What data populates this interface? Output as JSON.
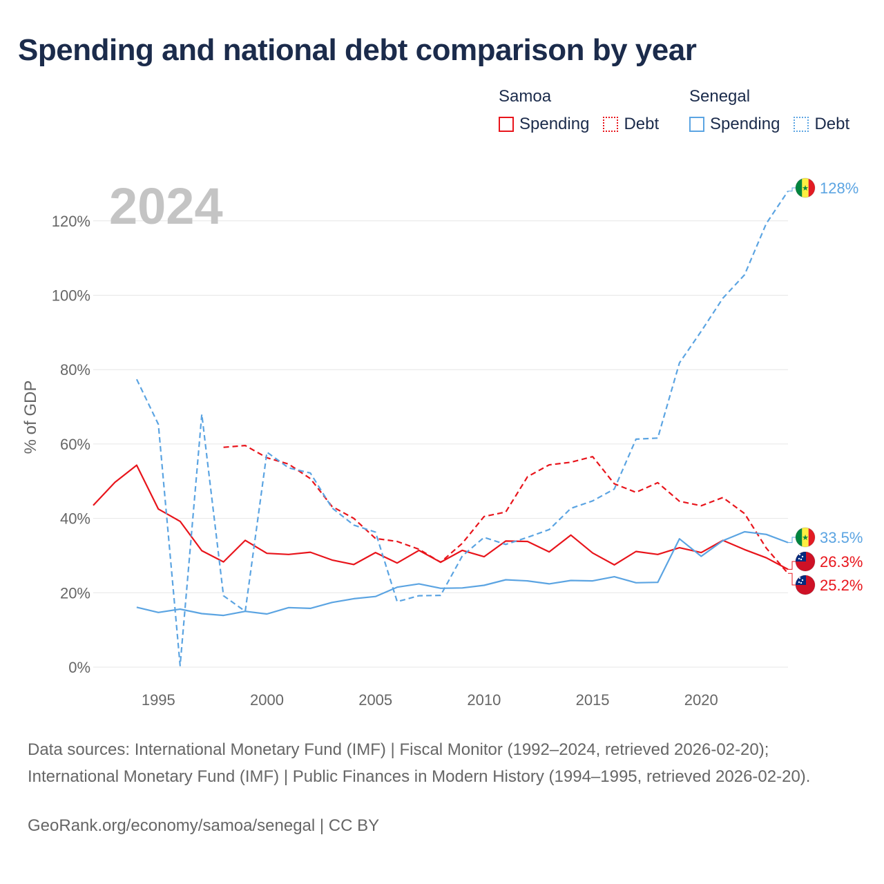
{
  "title": "Spending and national debt comparison by year",
  "colors": {
    "samoa": "#e8141b",
    "senegal": "#5ba4e2",
    "title": "#1b2b4b",
    "muted": "#666666",
    "watermark": "#c4c4c4"
  },
  "legend": {
    "samoa": {
      "label": "Samoa",
      "spending": "Spending",
      "debt": "Debt"
    },
    "senegal": {
      "label": "Senegal",
      "spending": "Spending",
      "debt": "Debt"
    }
  },
  "footer": {
    "sources": "Data sources: International Monetary Fund (IMF) | Fiscal Monitor (1992–2024, retrieved 2026-02-20); International Monetary Fund (IMF) | Public Finances in Modern History (1994–1995, retrieved 2026-02-20).",
    "credit": "GeoRank.org/economy/samoa/senegal | CC BY"
  },
  "chart_data": {
    "type": "line",
    "title": "Spending and national debt comparison by year",
    "year_label": "2024",
    "ylabel": "% of GDP",
    "xlim": [
      1992,
      2024
    ],
    "ylim": [
      0,
      128
    ],
    "x_ticks": [
      1995,
      2000,
      2005,
      2010,
      2015,
      2020
    ],
    "y_ticks": [
      0,
      20,
      40,
      60,
      80,
      100,
      120
    ],
    "y_tick_labels": [
      "0%",
      "20%",
      "40%",
      "60%",
      "80%",
      "100%",
      "120%"
    ],
    "series": [
      {
        "name": "Samoa Spending",
        "country": "samoa",
        "dashed": false,
        "x": [
          1992,
          1993,
          1994,
          1995,
          1996,
          1997,
          1998,
          1999,
          2000,
          2001,
          2002,
          2003,
          2004,
          2005,
          2006,
          2007,
          2008,
          2009,
          2010,
          2011,
          2012,
          2013,
          2014,
          2015,
          2016,
          2017,
          2018,
          2019,
          2020,
          2021,
          2022,
          2023,
          2024
        ],
        "y": [
          43.5,
          49.7,
          54.3,
          42.5,
          39.2,
          31.3,
          28.3,
          34.1,
          30.6,
          30.3,
          30.9,
          28.8,
          27.6,
          30.8,
          28,
          31.4,
          28.2,
          31.4,
          29.7,
          33.9,
          33.8,
          31,
          35.5,
          30.7,
          27.5,
          31.1,
          30.3,
          32.1,
          30.8,
          34.1,
          31.6,
          29.4,
          26.3
        ]
      },
      {
        "name": "Samoa Debt",
        "country": "samoa",
        "dashed": true,
        "x": [
          1998,
          1999,
          2000,
          2001,
          2002,
          2003,
          2004,
          2005,
          2006,
          2007,
          2008,
          2009,
          2010,
          2011,
          2012,
          2013,
          2014,
          2015,
          2016,
          2017,
          2018,
          2019,
          2020,
          2021,
          2022,
          2023,
          2024
        ],
        "y": [
          59.1,
          59.6,
          56.3,
          54.6,
          50.7,
          43.2,
          40,
          34.6,
          33.8,
          31.7,
          28.2,
          33.3,
          40.5,
          41.7,
          51.2,
          54.4,
          55.1,
          56.6,
          49.3,
          47,
          49.6,
          44.6,
          43.4,
          45.6,
          41.3,
          32,
          25.2
        ]
      },
      {
        "name": "Senegal Spending",
        "country": "senegal",
        "dashed": false,
        "x": [
          1994,
          1995,
          1996,
          1997,
          1998,
          1999,
          2000,
          2001,
          2002,
          2003,
          2004,
          2005,
          2006,
          2007,
          2008,
          2009,
          2010,
          2011,
          2012,
          2013,
          2014,
          2015,
          2016,
          2017,
          2018,
          2019,
          2020,
          2021,
          2022,
          2023,
          2024
        ],
        "y": [
          16.1,
          14.7,
          15.6,
          14.4,
          13.9,
          15,
          14.3,
          16,
          15.8,
          17.4,
          18.4,
          19,
          21.5,
          22.4,
          21.2,
          21.3,
          22,
          23.5,
          23.2,
          22.4,
          23.3,
          23.2,
          24.3,
          22.7,
          22.8,
          34.5,
          29.8,
          34,
          36.4,
          35.7,
          33.5
        ]
      },
      {
        "name": "Senegal Debt",
        "country": "senegal",
        "dashed": true,
        "x": [
          1994,
          1995,
          1996,
          1997,
          1998,
          1999,
          2000,
          2001,
          2002,
          2003,
          2004,
          2005,
          2006,
          2007,
          2008,
          2009,
          2010,
          2011,
          2012,
          2013,
          2014,
          2015,
          2016,
          2017,
          2018,
          2019,
          2020,
          2021,
          2022,
          2023,
          2024
        ],
        "y": [
          77.4,
          65.3,
          0.4,
          68,
          19.2,
          15,
          57.8,
          53.6,
          52.2,
          42.8,
          38.2,
          36.3,
          17.6,
          19.2,
          19.3,
          29.9,
          34.9,
          33,
          34.9,
          37,
          42.7,
          44.7,
          47.9,
          61.3,
          61.6,
          81.8,
          90.3,
          99.2,
          105.5,
          119.3,
          128
        ]
      }
    ],
    "end_labels": [
      {
        "text": "128%",
        "country": "senegal",
        "value": 128,
        "flag": "senegal"
      },
      {
        "text": "33.5%",
        "country": "senegal",
        "value": 33.5,
        "flag": "senegal"
      },
      {
        "text": "26.3%",
        "country": "samoa",
        "value": 26.3,
        "flag": "samoa"
      },
      {
        "text": "25.2%",
        "country": "samoa",
        "value": 25.2,
        "flag": "samoa"
      }
    ]
  }
}
